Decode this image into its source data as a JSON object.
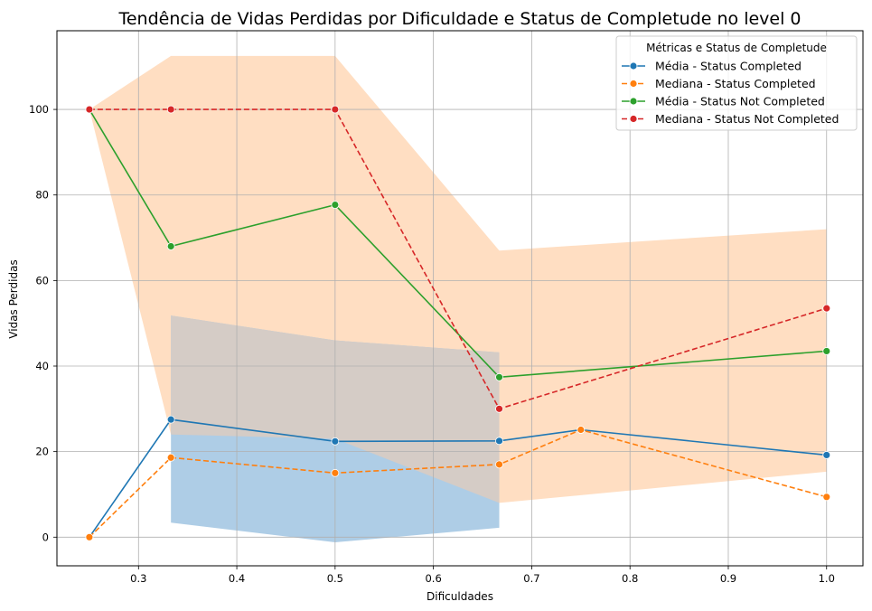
{
  "chart_data": {
    "type": "line",
    "title": "Tendência de Vidas Perdidas por Dificuldade e Status de Completude no level 0",
    "xlabel": "Dificuldades",
    "ylabel": "Vidas Perdidas",
    "xlim": [
      0.217,
      1.037
    ],
    "ylim": [
      -6.7,
      118.4
    ],
    "xticks": [
      0.3,
      0.4,
      0.5,
      0.6,
      0.7,
      0.8,
      0.9,
      1.0
    ],
    "xtick_labels": [
      "0.3",
      "0.4",
      "0.5",
      "0.6",
      "0.7",
      "0.8",
      "0.9",
      "1.0"
    ],
    "yticks": [
      0,
      20,
      40,
      60,
      80,
      100
    ],
    "ytick_labels": [
      "0",
      "20",
      "40",
      "60",
      "80",
      "100"
    ],
    "grid": true,
    "legend": {
      "title": "Métricas e Status de Completude",
      "placement": "top-right"
    },
    "bands": [
      {
        "color": "#ffdec2",
        "x": [
          0.25,
          0.333,
          0.5,
          0.667,
          1.0
        ],
        "upper": [
          100,
          112.5,
          112.5,
          67,
          72
        ],
        "lower": [
          100,
          24,
          23,
          8,
          15.3
        ]
      },
      {
        "color": "#aecde6",
        "overlap_color": "#d5ccc6",
        "x": [
          0.333,
          0.5,
          0.667
        ],
        "upper": [
          51.8,
          46,
          43.2
        ],
        "lower": [
          3.4,
          -1.2,
          2.2
        ]
      }
    ],
    "series": [
      {
        "name": "Média - Status Completed",
        "color": "#1f77b4",
        "dashed": false,
        "x": [
          0.25,
          0.333,
          0.5,
          0.667,
          0.75,
          1.0
        ],
        "y": [
          0,
          27.5,
          22.4,
          22.5,
          25.1,
          19.2
        ]
      },
      {
        "name": "Mediana - Status Completed",
        "color": "#ff7f0e",
        "dashed": true,
        "x": [
          0.25,
          0.333,
          0.5,
          0.667,
          0.75,
          1.0
        ],
        "y": [
          0,
          18.6,
          15,
          17,
          25.1,
          9.4
        ]
      },
      {
        "name": "Média - Status Not Completed",
        "color": "#2ca02c",
        "dashed": false,
        "x": [
          0.25,
          0.333,
          0.5,
          0.667,
          1.0
        ],
        "y": [
          100,
          68,
          77.7,
          37.4,
          43.5
        ]
      },
      {
        "name": "Mediana - Status Not Completed",
        "color": "#d62728",
        "dashed": true,
        "x": [
          0.25,
          0.333,
          0.5,
          0.667,
          1.0
        ],
        "y": [
          100,
          100,
          100,
          30,
          53.5
        ]
      }
    ]
  }
}
